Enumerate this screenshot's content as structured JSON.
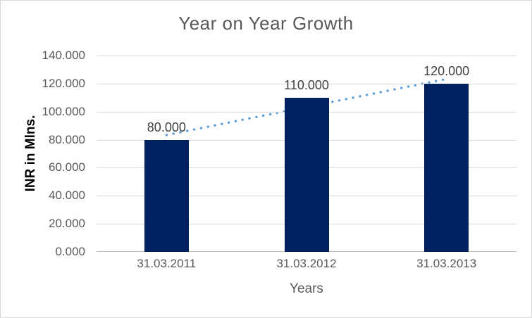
{
  "chart_data": {
    "type": "bar",
    "title": "Year on Year Growth",
    "xlabel": "Years",
    "ylabel": "INR in Mlns.",
    "categories": [
      "31.03.2011",
      "31.03.2012",
      "31.03.2013"
    ],
    "values": [
      80,
      110,
      120
    ],
    "data_labels": [
      "80.000",
      "110.000",
      "120.000"
    ],
    "ytick_labels": [
      "0.000",
      "20.000",
      "40.000",
      "60.000",
      "80.000",
      "100.000",
      "120.000",
      "140.000"
    ],
    "ylim": [
      0,
      140
    ],
    "ytick_step": 20,
    "grid": true,
    "legend": "none",
    "trendline": {
      "type": "linear",
      "style": "dotted",
      "start_value": 83.33,
      "end_value": 123.33
    },
    "colors": {
      "bar": "#002060",
      "trendline": "#5B9BD5",
      "gridline": "#D9D9D9",
      "axis_line": "#BFBFBF",
      "title_text": "#595959",
      "tick_text": "#595959",
      "data_label_text": "#404040",
      "axis_title_text": "#595959",
      "y_axis_title_text": "#000000",
      "background": "#FFFFFF",
      "border": "#D9D9D9"
    }
  }
}
